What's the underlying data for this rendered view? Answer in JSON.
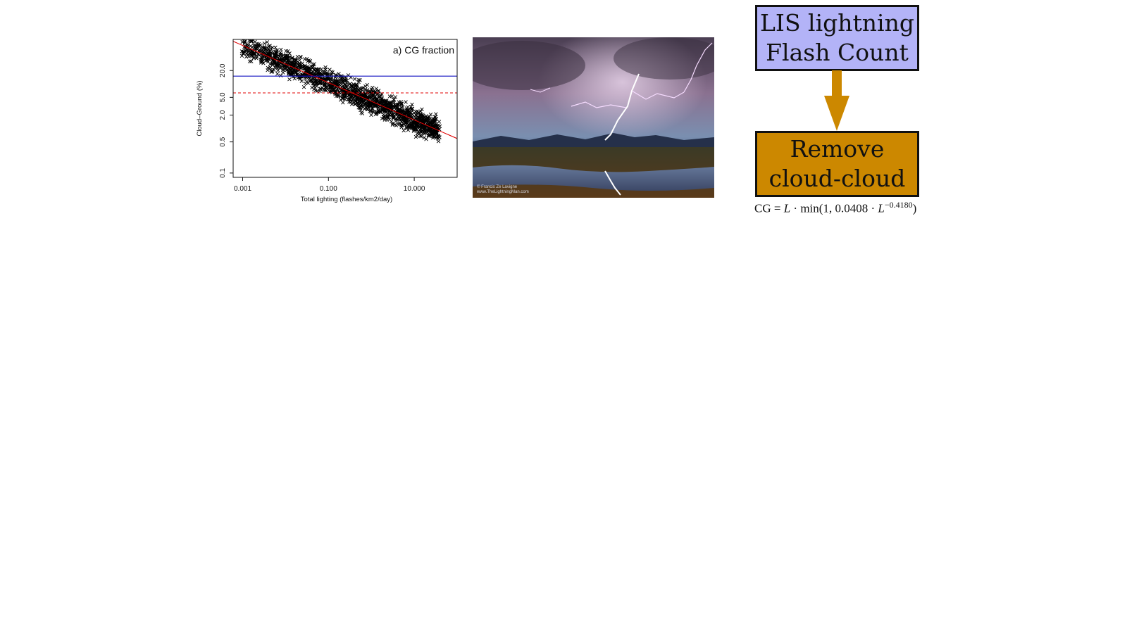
{
  "chart_data": {
    "type": "scatter",
    "title": "a) CG fraction",
    "xlabel": "Total lighting (flashes/km2/day)",
    "ylabel": "Cloud–Ground (%)",
    "xscale": "log",
    "yscale": "log",
    "xlim": [
      0.0006,
      100
    ],
    "ylim": [
      0.08,
      100
    ],
    "x_ticks": [
      "0.001",
      "0.100",
      "10.000"
    ],
    "y_ticks": [
      "0.1",
      "0.5",
      "2.0",
      "5.0",
      "20.0"
    ],
    "x_tick_values": [
      0.001,
      0.1,
      10
    ],
    "y_tick_values": [
      0.1,
      0.5,
      2,
      5,
      20
    ],
    "marker": "x",
    "point_cloud": {
      "fit_intercept_pct": 4.08,
      "fit_slope": -0.418,
      "n_points": 1600
    },
    "lines": [
      {
        "kind": "fit",
        "color": "#e00000",
        "style": "solid",
        "intercept_pct": 4.08,
        "slope": -0.418
      },
      {
        "kind": "horizontal",
        "color": "#1010c0",
        "style": "solid",
        "y": 15
      },
      {
        "kind": "horizontal",
        "color": "#e00000",
        "style": "dashed",
        "y": 6.3
      }
    ],
    "grid": false,
    "legend": "none"
  },
  "photo": {
    "icon": "lightning-storm-photo",
    "caption_line1": "© Francis Ze Lavigne",
    "caption_line2": "www.TheLightningMan.com"
  },
  "flow": {
    "box1_line1": "LIS lightning",
    "box1_line2": "Flash Count",
    "box1_color": "#b3b3f7",
    "box2_line1": "Remove",
    "box2_line2": "cloud-cloud",
    "box2_color": "#cc8800",
    "arrow_color": "#cc8800"
  },
  "formula": {
    "lhs": "CG = ",
    "var1": "L",
    "mid": " · min(1, 0.0408 · ",
    "var2": "L",
    "exponent": "−0.4180",
    "close": ")"
  }
}
